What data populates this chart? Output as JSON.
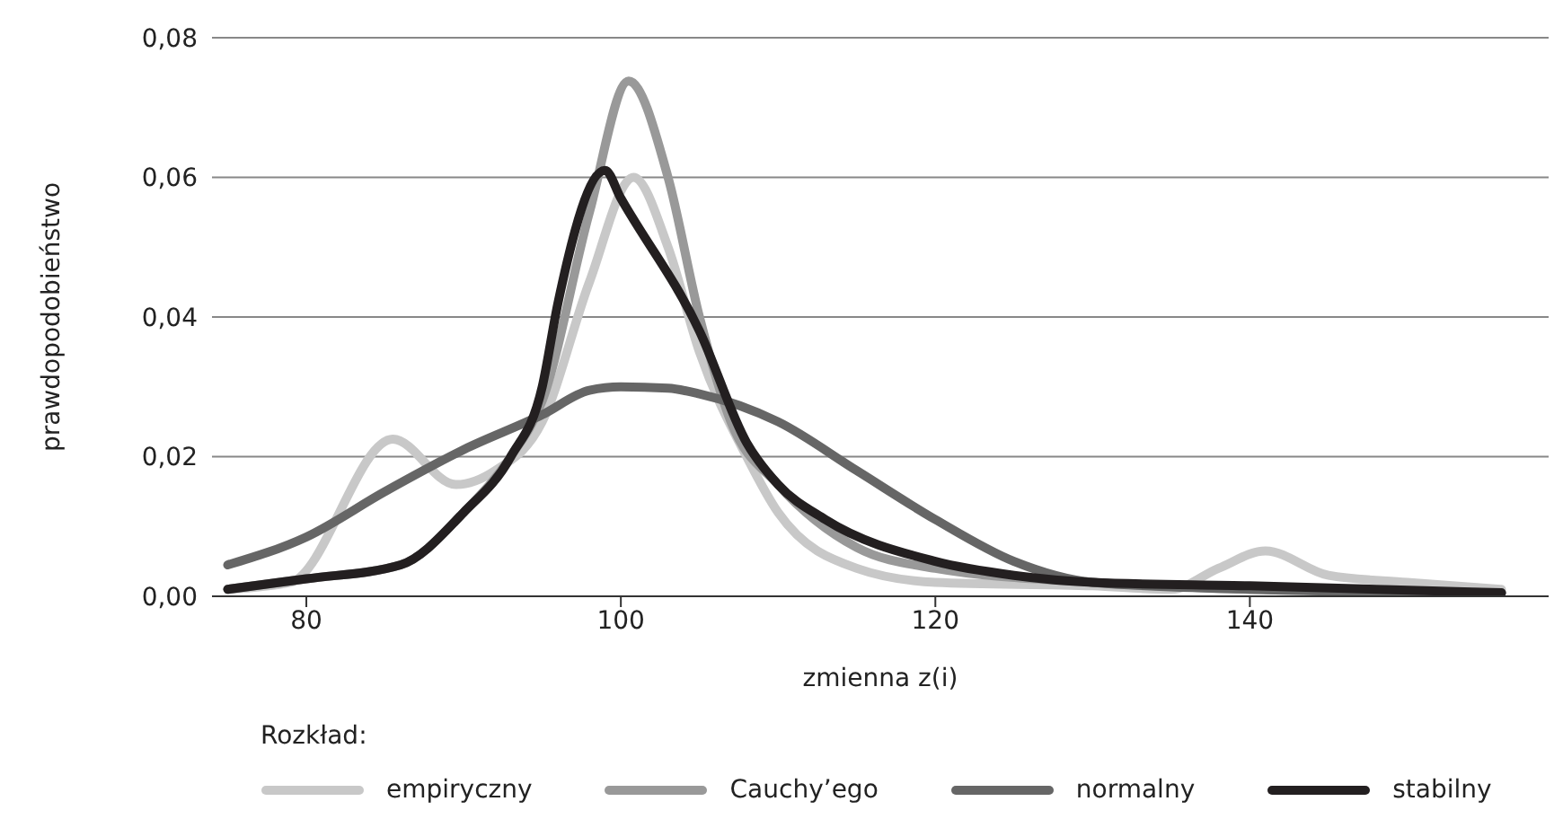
{
  "chart_data": {
    "type": "line",
    "xlabel": "zmienna z(i)",
    "ylabel": "prawdopodobieństwo",
    "legend_title": "Rozkład:",
    "legend": "bottom",
    "grid": "y",
    "marker": "none",
    "line_style": "solid",
    "xlim": [
      74,
      159
    ],
    "xticks": [
      80,
      100,
      120,
      140
    ],
    "ylim": [
      0,
      0.08
    ],
    "yticks": [
      {
        "value": 0,
        "label": "0,00"
      },
      {
        "value": 0.02,
        "label": "0,02"
      },
      {
        "value": 0.04,
        "label": "0,04"
      },
      {
        "value": 0.06,
        "label": "0,06"
      },
      {
        "value": 0.08,
        "label": "0,08"
      }
    ],
    "series": [
      {
        "name": "empiryczny",
        "color": "#c8c8c8",
        "x": [
          75,
          79,
          85.5,
          89.5,
          92,
          95,
          98,
          100.8,
          103,
          105,
          108,
          110,
          115,
          120,
          130,
          135,
          138,
          141,
          145,
          150,
          156
        ],
        "values": [
          0.001,
          0.002,
          0.0225,
          0.016,
          0.018,
          0.025,
          0.045,
          0.06,
          0.05,
          0.035,
          0.02,
          0.012,
          0.004,
          0.002,
          0.0015,
          0.001,
          0.004,
          0.0065,
          0.003,
          0.002,
          0.001
        ]
      },
      {
        "name": "Cauchy’ego",
        "color": "#999999",
        "x": [
          75,
          80,
          86,
          90,
          93,
          95,
          98,
          100.5,
          103,
          105,
          107,
          110,
          115,
          120,
          130,
          140,
          156
        ],
        "values": [
          0.001,
          0.0025,
          0.0045,
          0.012,
          0.02,
          0.028,
          0.055,
          0.0738,
          0.06,
          0.04,
          0.025,
          0.016,
          0.007,
          0.004,
          0.002,
          0.001,
          0.0005
        ]
      },
      {
        "name": "normalny",
        "color": "#666666",
        "x": [
          75,
          80,
          85,
          90,
          95,
          98,
          100,
          103,
          105,
          110,
          115,
          120,
          125,
          130,
          140,
          156
        ],
        "values": [
          0.0045,
          0.0085,
          0.015,
          0.021,
          0.026,
          0.0295,
          0.03,
          0.0298,
          0.029,
          0.025,
          0.018,
          0.011,
          0.005,
          0.002,
          0.001,
          0.0005
        ]
      },
      {
        "name": "stabilny",
        "color": "#231f20",
        "x": [
          75,
          80,
          86,
          90,
          93,
          95,
          96,
          99,
          100,
          105,
          108,
          110,
          113,
          120,
          125,
          130,
          140,
          156
        ],
        "values": [
          0.001,
          0.0025,
          0.0045,
          0.012,
          0.02,
          0.03,
          0.042,
          0.061,
          0.057,
          0.038,
          0.022,
          0.016,
          0.011,
          0.005,
          0.003,
          0.002,
          0.0015,
          0.0005
        ]
      }
    ]
  }
}
